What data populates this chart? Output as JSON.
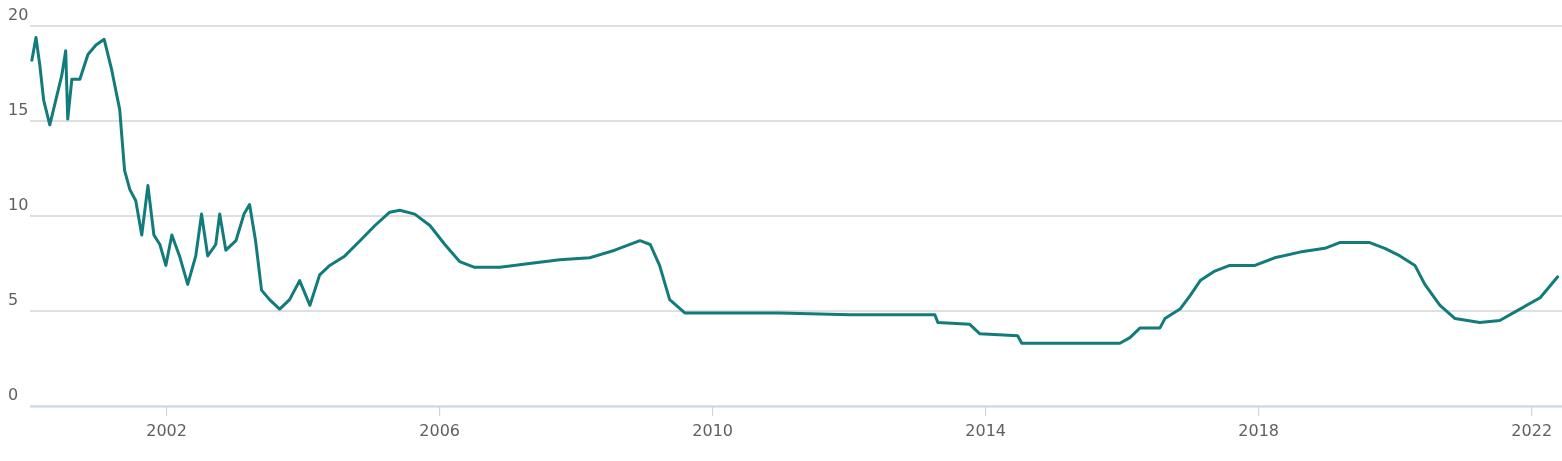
{
  "chart_data": {
    "type": "line",
    "x": [
      "2000-01-11",
      "2000-02-02",
      "2000-02-23",
      "2000-03-14",
      "2000-04-16",
      "2000-05-18",
      "2000-06-19",
      "2000-07-10",
      "2000-07-21",
      "2000-08-12",
      "2000-09-24",
      "2000-11-06",
      "2000-12-19",
      "2001-02-01",
      "2001-03-13",
      "2001-04-25",
      "2001-05-21",
      "2001-06-18",
      "2001-07-20",
      "2001-08-21",
      "2001-09-23",
      "2001-10-25",
      "2001-11-26",
      "2001-12-28",
      "2002-01-29",
      "2002-03-11",
      "2002-04-24",
      "2002-06-06",
      "2002-07-07",
      "2002-08-09",
      "2002-09-21",
      "2002-10-12",
      "2002-11-14",
      "2003-01-07",
      "2003-02-19",
      "2003-03-21",
      "2003-04-22",
      "2003-05-24",
      "2003-07-06",
      "2003-08-29",
      "2003-10-21",
      "2003-12-14",
      "2004-02-07",
      "2004-03-30",
      "2004-05-23",
      "2004-08-12",
      "2004-11-01",
      "2005-01-20",
      "2005-04-09",
      "2005-06-02",
      "2005-08-21",
      "2005-11-10",
      "2006-01-29",
      "2006-04-18",
      "2006-07-07",
      "2006-11-19",
      "2007-04-27",
      "2007-10-06",
      "2008-03-14",
      "2008-07-26",
      "2008-12-08",
      "2009-02-01",
      "2009-03-23",
      "2009-05-16",
      "2009-08-05",
      "2010-02-10",
      "2010-12-26",
      "2012-01-06",
      "2013-04-04",
      "2013-04-20",
      "2013-10-08",
      "2013-12-01",
      "2014-06-21",
      "2014-07-13",
      "2015-12-20",
      "2016-02-12",
      "2016-04-05",
      "2016-07-21",
      "2016-08-17",
      "2016-11-06",
      "2016-12-29",
      "2017-02-22",
      "2017-05-11",
      "2017-07-30",
      "2017-12-12",
      "2018-03-27",
      "2018-08-09",
      "2018-12-21",
      "2019-03-10",
      "2019-08-18",
      "2019-11-07",
      "2020-01-27",
      "2020-04-16",
      "2020-06-08",
      "2020-08-28",
      "2020-11-17",
      "2021-03-29",
      "2021-07-14",
      "2021-10-30",
      "2022-02-15",
      "2022-05-20"
    ],
    "series": [
      {
        "color": "#127b7b",
        "values": [
          18.2,
          19.4,
          17.9,
          16.1,
          14.8,
          16.1,
          17.4,
          18.7,
          15.1,
          17.2,
          17.2,
          18.5,
          19.0,
          19.3,
          17.7,
          15.6,
          12.4,
          11.4,
          10.8,
          9.0,
          11.6,
          9.0,
          8.5,
          7.4,
          9.0,
          7.9,
          6.4,
          7.9,
          10.1,
          7.9,
          8.5,
          10.1,
          8.2,
          8.7,
          10.1,
          10.6,
          8.7,
          6.1,
          5.6,
          5.1,
          5.6,
          6.6,
          5.3,
          6.9,
          7.4,
          7.9,
          8.7,
          9.5,
          10.2,
          10.3,
          10.1,
          9.5,
          8.5,
          7.6,
          7.3,
          7.3,
          7.5,
          7.7,
          7.8,
          8.2,
          8.7,
          8.5,
          7.4,
          5.6,
          4.9,
          4.9,
          4.9,
          4.8,
          4.8,
          4.4,
          4.3,
          3.8,
          3.7,
          3.3,
          3.3,
          3.6,
          4.1,
          4.1,
          4.6,
          5.1,
          5.8,
          6.6,
          7.1,
          7.4,
          7.4,
          7.8,
          8.1,
          8.3,
          8.6,
          8.6,
          8.3,
          7.9,
          7.4,
          6.4,
          5.3,
          4.6,
          4.4,
          4.5,
          5.1,
          5.7,
          6.8
        ]
      }
    ],
    "xlim": [
      "2000-01-01",
      "2022-06-12"
    ],
    "xticks": [
      "2002",
      "2006",
      "2010",
      "2014",
      "2018",
      "2022"
    ],
    "ylim": [
      0,
      20
    ],
    "yticks": [
      0,
      5,
      10,
      15,
      20
    ],
    "grid": "y"
  }
}
